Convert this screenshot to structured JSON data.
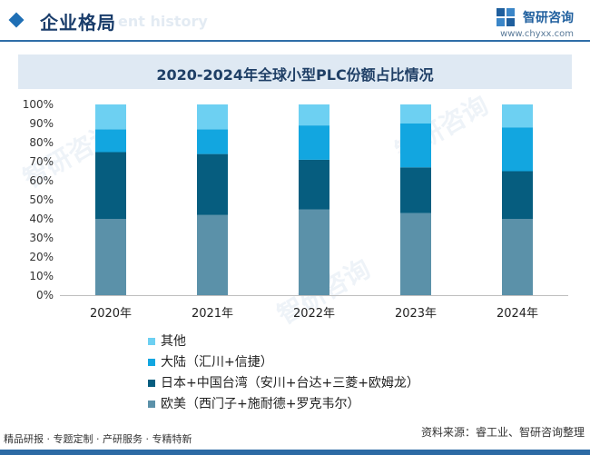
{
  "header": {
    "section_title": "企业格局",
    "section_subtitle_ghost": "ent history",
    "brand_name": "智研咨询",
    "brand_url": "www.chyxx.com"
  },
  "chart_title": "2020-2024年全球小型PLC份额占比情况",
  "chart_data": {
    "type": "bar",
    "stacked": true,
    "categories": [
      "2020年",
      "2021年",
      "2022年",
      "2023年",
      "2024年"
    ],
    "series": [
      {
        "name": "欧美（西门子+施耐德+罗克韦尔）",
        "color": "#5b91a9",
        "values": [
          40,
          42,
          45,
          43,
          40
        ]
      },
      {
        "name": "日本+中国台湾（安川+台达+三菱+欧姆龙）",
        "color": "#065d7f",
        "values": [
          35,
          32,
          26,
          24,
          25
        ]
      },
      {
        "name": "大陆（汇川+信捷）",
        "color": "#12a6e0",
        "values": [
          12,
          13,
          18,
          23,
          23
        ]
      },
      {
        "name": "其他",
        "color": "#6dd0f2",
        "values": [
          13,
          13,
          11,
          10,
          12
        ]
      }
    ],
    "yticks": [
      "0%",
      "10%",
      "20%",
      "30%",
      "40%",
      "50%",
      "60%",
      "70%",
      "80%",
      "90%",
      "100%"
    ],
    "ylim": [
      0,
      100
    ],
    "legend_position": "bottom",
    "grid": false
  },
  "legend_order": [
    "其他",
    "大陆（汇川+信捷）",
    "日本+中国台湾（安川+台达+三菱+欧姆龙）",
    "欧美（西门子+施耐德+罗克韦尔）"
  ],
  "footer": {
    "tags": "精品研报 · 专题定制 · 产研服务 · 专精特新",
    "source": "资料来源：睿工业、智研咨询整理"
  },
  "watermark_text": "智研咨询"
}
